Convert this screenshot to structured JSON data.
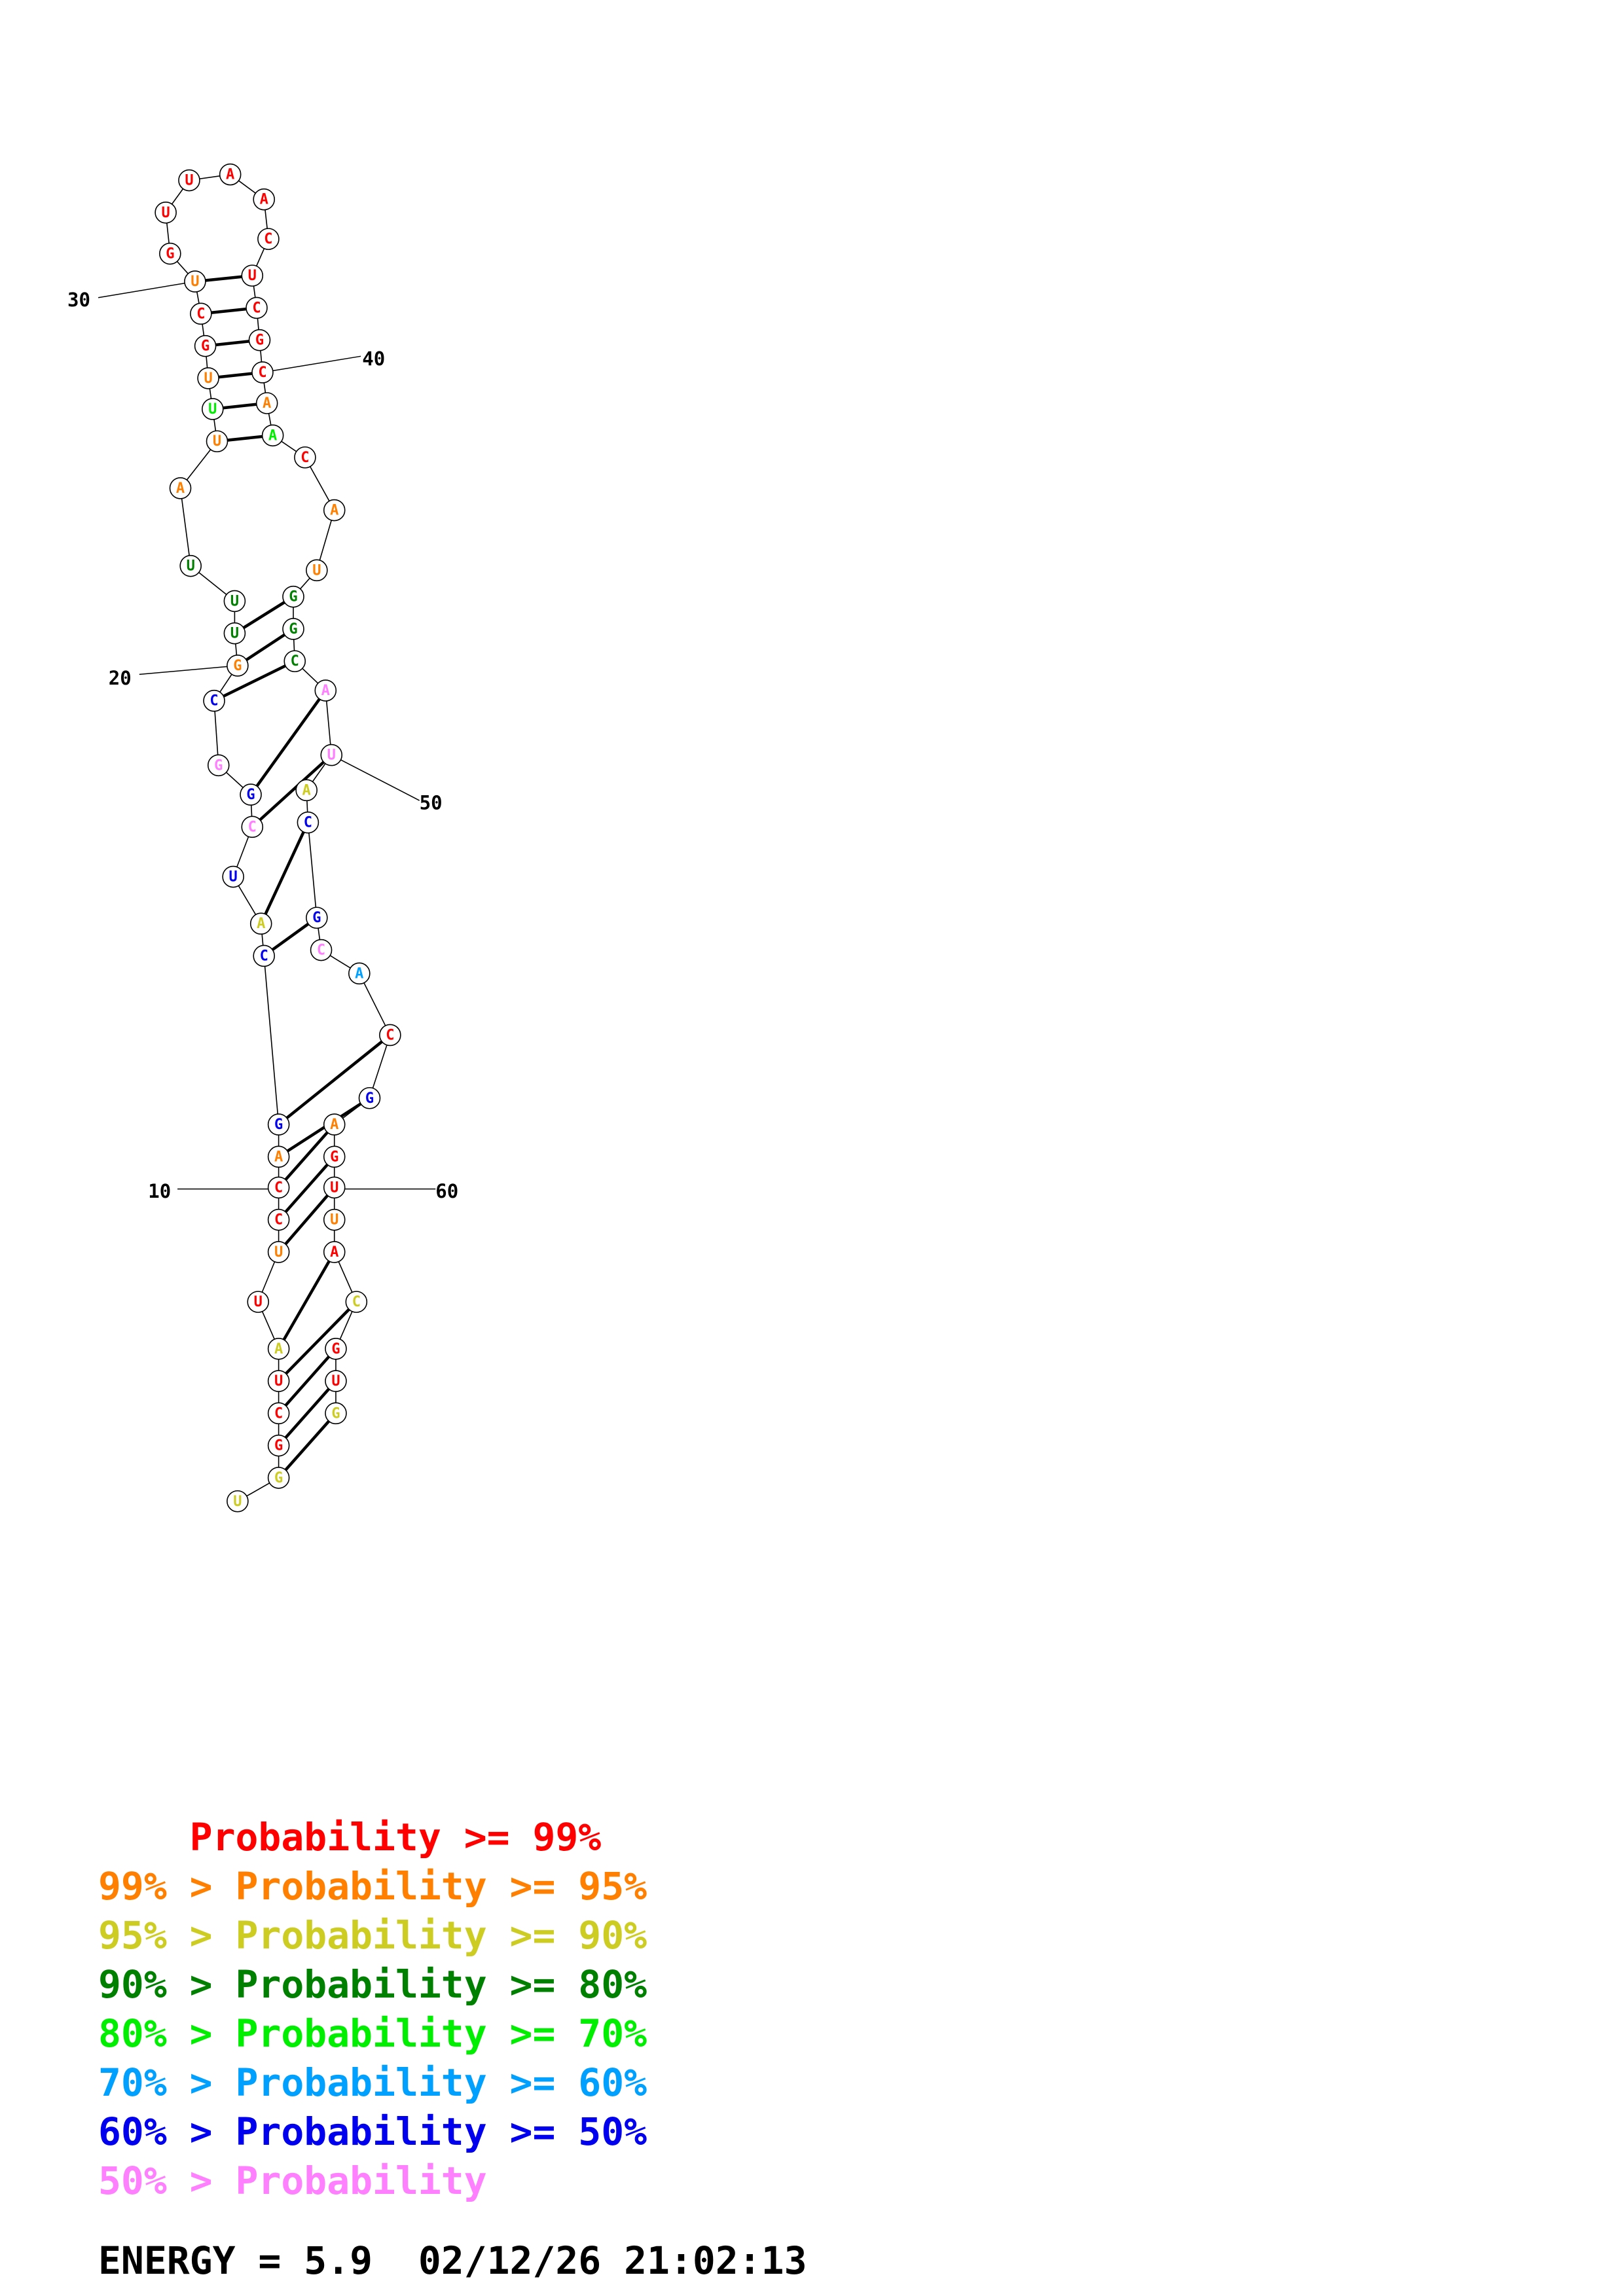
{
  "colors": {
    "p99": "#ff0000",
    "p95": "#ff8000",
    "p90": "#cccc22",
    "p80": "#008000",
    "p70": "#00ee00",
    "p60": "#00a0ff",
    "p50": "#0000ee",
    "plow": "#ff80ff"
  },
  "structure": {
    "sequence": [
      "U",
      "G",
      "G",
      "C",
      "U",
      "A",
      "U",
      "U",
      "C",
      "C",
      "A",
      "G",
      "C",
      "A",
      "U",
      "C",
      "G",
      "G",
      "C",
      "G",
      "U",
      "U",
      "U",
      "A",
      "U",
      "U",
      "U",
      "G",
      "C",
      "U",
      "G",
      "U",
      "U",
      "A",
      "A",
      "C",
      "U",
      "C",
      "G",
      "C",
      "A",
      "A",
      "C",
      "A",
      "U",
      "G",
      "G",
      "C",
      "A",
      "U",
      "A",
      "C",
      "G",
      "C",
      "A",
      "C",
      "G",
      "A",
      "G",
      "U",
      "U",
      "A",
      "C",
      "G",
      "U",
      "G"
    ],
    "probability_class": [
      "p90",
      "p90",
      "p99",
      "p99",
      "p99",
      "p90",
      "p99",
      "p95",
      "p99",
      "p99",
      "p95",
      "p50",
      "p50",
      "p90",
      "p50",
      "plow",
      "p50",
      "plow",
      "p50",
      "p95",
      "p80",
      "p80",
      "p80",
      "p95",
      "p95",
      "p70",
      "p95",
      "p99",
      "p99",
      "p95",
      "p99",
      "p99",
      "p99",
      "p99",
      "p99",
      "p99",
      "p99",
      "p99",
      "p99",
      "p99",
      "p95",
      "p70",
      "p99",
      "p95",
      "p95",
      "p80",
      "p80",
      "p80",
      "plow",
      "plow",
      "p90",
      "p50",
      "p50",
      "plow",
      "p60",
      "p99",
      "p50",
      "p95",
      "p99",
      "p99",
      "p95",
      "p99",
      "p90",
      "p99",
      "p99",
      "p90"
    ],
    "pairs": [
      [
        2,
        66
      ],
      [
        3,
        65
      ],
      [
        4,
        64
      ],
      [
        5,
        63
      ],
      [
        6,
        62
      ],
      [
        8,
        60
      ],
      [
        9,
        59
      ],
      [
        10,
        58
      ],
      [
        11,
        57
      ],
      [
        12,
        56
      ],
      [
        13,
        53
      ],
      [
        14,
        52
      ],
      [
        16,
        50
      ],
      [
        17,
        49
      ],
      [
        19,
        48
      ],
      [
        20,
        47
      ],
      [
        21,
        46
      ],
      [
        25,
        42
      ],
      [
        26,
        41
      ],
      [
        27,
        40
      ],
      [
        28,
        39
      ],
      [
        29,
        38
      ],
      [
        30,
        37
      ]
    ],
    "position_labels": [
      {
        "index": 10,
        "text": "10"
      },
      {
        "index": 20,
        "text": "20"
      },
      {
        "index": 30,
        "text": "30"
      },
      {
        "index": 40,
        "text": "40"
      },
      {
        "index": 50,
        "text": "50"
      },
      {
        "index": 60,
        "text": "60"
      }
    ]
  },
  "legend": [
    {
      "prefix": "    ",
      "text": "    Probability >= 99%",
      "color_key": "p99"
    },
    {
      "prefix": "",
      "text": "99% > Probability >= 95%",
      "color_key": "p95"
    },
    {
      "prefix": "",
      "text": "95% > Probability >= 90%",
      "color_key": "p90"
    },
    {
      "prefix": "",
      "text": "90% > Probability >= 80%",
      "color_key": "p80"
    },
    {
      "prefix": "",
      "text": "80% > Probability >= 70%",
      "color_key": "p70"
    },
    {
      "prefix": "",
      "text": "70% > Probability >= 60%",
      "color_key": "p60"
    },
    {
      "prefix": "",
      "text": "60% > Probability >= 50%",
      "color_key": "p50"
    },
    {
      "prefix": "",
      "text": "50% > Probability",
      "color_key": "plow"
    }
  ],
  "footer": {
    "energy": "ENERGY = 5.9  02/12/26 21:02:13"
  }
}
